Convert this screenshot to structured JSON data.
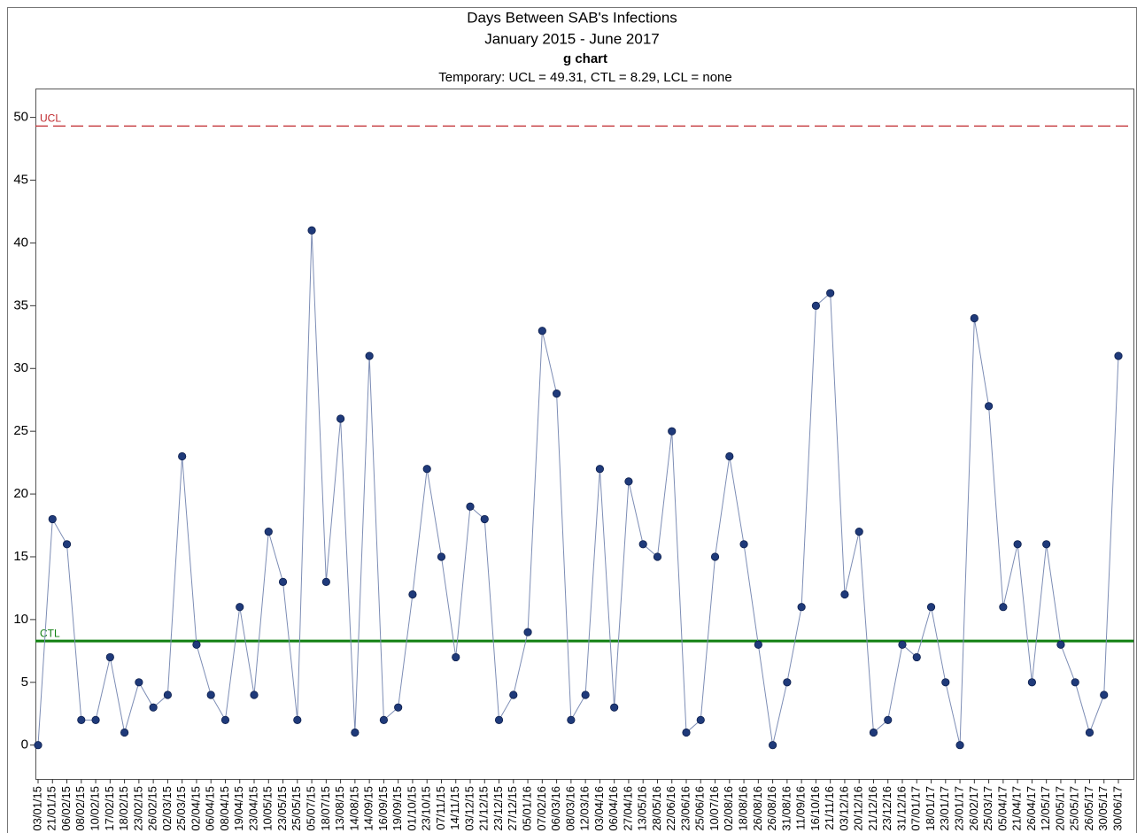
{
  "chart_data": {
    "type": "line",
    "title": "Days Between SAB's Infections",
    "subtitle": "January 2015 - June 2017",
    "chart_name": "g chart",
    "limits_text": "Temporary: UCL = 49.31, CTL = 8.29, LCL = none",
    "categories": [
      "03/01/15",
      "21/01/15",
      "06/02/15",
      "08/02/15",
      "10/02/15",
      "17/02/15",
      "18/02/15",
      "23/02/15",
      "26/02/15",
      "02/03/15",
      "25/03/15",
      "02/04/15",
      "06/04/15",
      "08/04/15",
      "19/04/15",
      "23/04/15",
      "10/05/15",
      "23/05/15",
      "25/05/15",
      "05/07/15",
      "18/07/15",
      "13/08/15",
      "14/08/15",
      "14/09/15",
      "16/09/15",
      "19/09/15",
      "01/10/15",
      "23/10/15",
      "07/11/15",
      "14/11/15",
      "03/12/15",
      "21/12/15",
      "23/12/15",
      "27/12/15",
      "05/01/16",
      "07/02/16",
      "06/03/16",
      "08/03/16",
      "12/03/16",
      "03/04/16",
      "06/04/16",
      "27/04/16",
      "13/05/16",
      "28/05/16",
      "22/06/16",
      "23/06/16",
      "25/06/16",
      "10/07/16",
      "02/08/16",
      "18/08/16",
      "26/08/16",
      "26/08/16",
      "31/08/16",
      "11/09/16",
      "16/10/16",
      "21/11/16",
      "03/12/16",
      "20/12/16",
      "21/12/16",
      "23/12/16",
      "31/12/16",
      "07/01/17",
      "18/01/17",
      "23/01/17",
      "23/01/17",
      "26/02/17",
      "25/03/17",
      "05/04/17",
      "21/04/17",
      "26/04/17",
      "12/05/17",
      "20/05/17",
      "25/05/17",
      "26/05/17",
      "30/05/17",
      "30/06/17"
    ],
    "series": [
      {
        "name": "Days",
        "color": "#1f3a7a",
        "line_color": "#7d8db5",
        "values": [
          0,
          18,
          16,
          2,
          2,
          7,
          1,
          5,
          3,
          4,
          23,
          8,
          4,
          2,
          11,
          4,
          17,
          13,
          2,
          41,
          13,
          26,
          1,
          31,
          2,
          3,
          12,
          22,
          15,
          7,
          19,
          18,
          2,
          4,
          9,
          33,
          28,
          2,
          4,
          22,
          3,
          21,
          16,
          15,
          25,
          1,
          2,
          15,
          23,
          16,
          8,
          0,
          5,
          11,
          35,
          36,
          12,
          17,
          1,
          2,
          8,
          7,
          11,
          5,
          0,
          34,
          27,
          11,
          16,
          5,
          16,
          8,
          5,
          1,
          4,
          31
        ]
      }
    ],
    "control_lines": [
      {
        "name": "UCL",
        "value": 49.31,
        "color": "#c0282d",
        "dashed": true
      },
      {
        "name": "CTL",
        "value": 8.29,
        "color": "#118011",
        "dashed": false
      }
    ],
    "ylim": [
      -2.7,
      52.3
    ],
    "yticks": [
      0,
      5,
      10,
      15,
      20,
      25,
      30,
      35,
      40,
      45,
      50
    ]
  }
}
